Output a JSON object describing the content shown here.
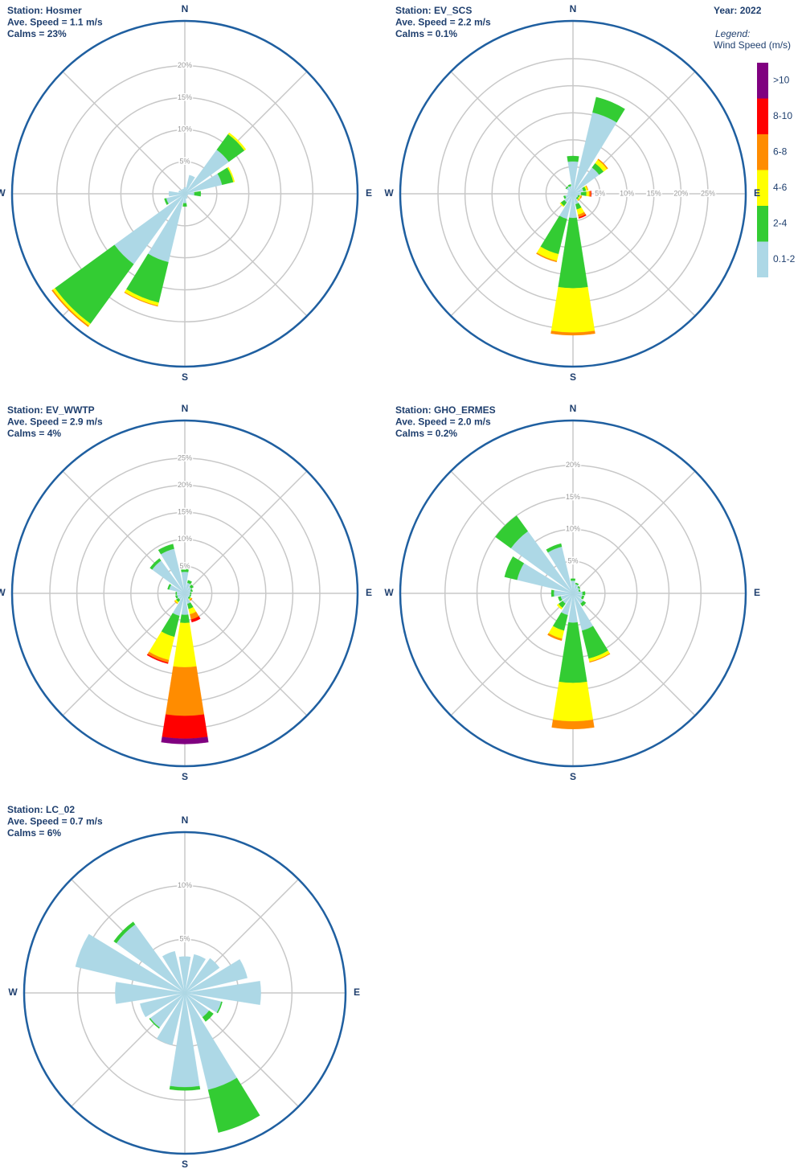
{
  "year": "Year: 2022",
  "legend": {
    "title": "Legend:",
    "subtitle": "Wind Speed (m/s)",
    "items": [
      {
        "name": "0.1-2",
        "color": "#add8e6"
      },
      {
        "name": "2-4",
        "color": "#33cc33"
      },
      {
        "name": "4-6",
        "color": "#ffff00"
      },
      {
        "name": "6-8",
        "color": "#ff8c00"
      },
      {
        "name": "8-10",
        "color": "#ff0000"
      },
      {
        "name": ">10",
        "color": "#800080"
      }
    ]
  },
  "chart_data": [
    {
      "type": "windrose",
      "station": "Station: Hosmer",
      "speed": "Ave. Speed =  1.1 m/s",
      "calms": "Calms = 23%",
      "categories": [
        "N",
        null,
        null,
        null,
        "E",
        null,
        null,
        null,
        "S",
        null,
        null,
        null,
        "W",
        null,
        null,
        null
      ],
      "ylim": [
        0,
        27
      ],
      "tick_position": "N",
      "yticks": [
        {
          "value": 5,
          "label": "5%"
        },
        {
          "value": 10,
          "label": "10%"
        },
        {
          "value": 15,
          "label": "15%"
        },
        {
          "value": 20,
          "label": "20%"
        }
      ],
      "series": [
        {
          "values": [
            1,
            3,
            8.5,
            6,
            1.5,
            0.5,
            0.5,
            0.8,
            1.5,
            11,
            13.6,
            3,
            2.5,
            1,
            0.8,
            0.8
          ]
        },
        {
          "values": [
            0,
            0,
            3,
            1.8,
            1,
            0,
            0,
            0,
            0.5,
            6.5,
            11.5,
            0.3,
            0,
            0,
            0,
            0
          ]
        },
        {
          "values": [
            0,
            0,
            0.3,
            0.2,
            0,
            0,
            0,
            0,
            0,
            0.5,
            0.4,
            0,
            0,
            0,
            0,
            0
          ]
        },
        {
          "values": [
            0,
            0,
            0,
            0,
            0,
            0,
            0,
            0,
            0,
            0.1,
            0.2,
            0,
            0,
            0,
            0,
            0
          ]
        },
        {
          "values": [
            0,
            0,
            0,
            0,
            0,
            0,
            0,
            0,
            0,
            0,
            0,
            0,
            0,
            0,
            0,
            0
          ]
        },
        {
          "values": [
            0,
            0,
            0,
            0,
            0,
            0,
            0,
            0,
            0,
            0,
            0,
            0,
            0,
            0,
            0,
            0
          ]
        }
      ]
    },
    {
      "type": "windrose",
      "station": "Station: EV_SCS",
      "speed": "Ave. Speed =  2.2 m/s",
      "calms": "Calms = 0.1%",
      "categories": [
        "N",
        null,
        null,
        null,
        "E",
        null,
        null,
        null,
        "S",
        null,
        null,
        null,
        "W",
        null,
        null,
        null
      ],
      "ylim": [
        0,
        32
      ],
      "tick_position": "E",
      "yticks": [
        {
          "value": 5,
          "label": "5%"
        },
        {
          "value": 10,
          "label": "10%"
        },
        {
          "value": 15,
          "label": "15%"
        },
        {
          "value": 20,
          "label": "20%"
        },
        {
          "value": 25,
          "label": "25%"
        }
      ],
      "series": [
        {
          "values": [
            6,
            15.5,
            6,
            2,
            1.5,
            1,
            1,
            2,
            4.5,
            4.8,
            2,
            1.5,
            1,
            1,
            1.5,
            1.5
          ]
        },
        {
          "values": [
            1,
            2.9,
            1,
            0.5,
            1,
            0.3,
            0.3,
            1,
            13,
            6.7,
            0.8,
            0.3,
            0,
            0,
            0.2,
            0.3
          ]
        },
        {
          "values": [
            0,
            0,
            0.8,
            0.3,
            0.5,
            0.2,
            0.2,
            1,
            8.2,
            1.3,
            0.2,
            0,
            0,
            0,
            0,
            0
          ]
        },
        {
          "values": [
            0,
            0,
            0.2,
            0.1,
            0.3,
            0.2,
            0.1,
            0.5,
            0.5,
            0.2,
            0,
            0,
            0,
            0,
            0,
            0
          ]
        },
        {
          "values": [
            0,
            0,
            0,
            0,
            0.1,
            0,
            0,
            0.2,
            0,
            0,
            0,
            0,
            0,
            0,
            0,
            0
          ]
        },
        {
          "values": [
            0,
            0,
            0,
            0,
            0,
            0,
            0,
            0,
            0,
            0,
            0,
            0,
            0,
            0,
            0,
            0
          ]
        }
      ]
    },
    {
      "type": "windrose",
      "station": "Station: EV_WWTP",
      "speed": "Ave. Speed =  2.9 m/s",
      "calms": "Calms = 4%",
      "categories": [
        "N",
        null,
        null,
        null,
        "E",
        null,
        null,
        null,
        "S",
        null,
        null,
        null,
        "W",
        null,
        null,
        null
      ],
      "ylim": [
        0,
        32
      ],
      "tick_position": "N",
      "yticks": [
        {
          "value": 5,
          "label": "5%"
        },
        {
          "value": 10,
          "label": "10%"
        },
        {
          "value": 15,
          "label": "15%"
        },
        {
          "value": 20,
          "label": "20%"
        },
        {
          "value": 25,
          "label": "25%"
        }
      ],
      "series": [
        {
          "values": [
            4,
            2,
            1.5,
            1.2,
            1,
            1,
            1,
            2,
            4,
            4.3,
            1.5,
            1.5,
            1.5,
            3,
            7.5,
            8.5
          ]
        },
        {
          "values": [
            1,
            0.5,
            0.5,
            0.3,
            0.2,
            0.2,
            0.3,
            1,
            1.5,
            4,
            0.5,
            0.3,
            0.2,
            0.3,
            0.5,
            0.9
          ]
        },
        {
          "values": [
            0,
            0,
            0,
            0,
            0,
            0,
            0.2,
            1,
            8.2,
            4.4,
            0.3,
            0,
            0,
            0,
            0,
            0
          ]
        },
        {
          "values": [
            0,
            0,
            0,
            0,
            0,
            0,
            0.2,
            1,
            9,
            0.5,
            0.1,
            0,
            0,
            0,
            0,
            0
          ]
        },
        {
          "values": [
            0,
            0,
            0,
            0,
            0,
            0,
            0,
            0.5,
            4.2,
            0.2,
            0,
            0,
            0,
            0,
            0,
            0
          ]
        },
        {
          "values": [
            0,
            0,
            0,
            0,
            0,
            0,
            0,
            0,
            1,
            0,
            0,
            0,
            0,
            0,
            0,
            0
          ]
        }
      ]
    },
    {
      "type": "windrose",
      "station": "Station: GHO_ERMES",
      "speed": "Ave. Speed =  2.0 m/s",
      "calms": "Calms = 0.2%",
      "categories": [
        "N",
        null,
        null,
        null,
        "E",
        null,
        null,
        null,
        "S",
        null,
        null,
        null,
        "W",
        null,
        null,
        null
      ],
      "ylim": [
        0,
        27
      ],
      "tick_position": "N",
      "yticks": [
        {
          "value": 5,
          "label": "5%"
        },
        {
          "value": 10,
          "label": "10%"
        },
        {
          "value": 15,
          "label": "15%"
        },
        {
          "value": 20,
          "label": "20%"
        }
      ],
      "series": [
        {
          "values": [
            2,
            1.5,
            1.2,
            1,
            1.5,
            1.5,
            2,
            6,
            4.6,
            3.5,
            2,
            2,
            3,
            9,
            12,
            7.5
          ]
        },
        {
          "values": [
            0.3,
            0.2,
            0.2,
            0.2,
            0.4,
            0.3,
            0.5,
            4.5,
            9.4,
            2.5,
            0.8,
            0.4,
            0.4,
            2,
            3,
            0.5
          ]
        },
        {
          "values": [
            0,
            0,
            0,
            0,
            0,
            0,
            0,
            0.5,
            6,
            1.3,
            0.3,
            0,
            0,
            0,
            0,
            0
          ]
        },
        {
          "values": [
            0,
            0,
            0,
            0,
            0,
            0,
            0,
            0.1,
            1.2,
            0.3,
            0,
            0,
            0,
            0,
            0,
            0
          ]
        },
        {
          "values": [
            0,
            0,
            0,
            0,
            0,
            0,
            0,
            0,
            0,
            0,
            0,
            0,
            0,
            0,
            0,
            0
          ]
        },
        {
          "values": [
            0,
            0,
            0,
            0,
            0,
            0,
            0,
            0,
            0,
            0,
            0,
            0,
            0,
            0,
            0,
            0
          ]
        }
      ]
    },
    {
      "type": "windrose",
      "station": "Station: LC_02",
      "speed": "Ave. Speed =  0.7 m/s",
      "calms": "Calms = 6%",
      "categories": [
        "N",
        null,
        null,
        null,
        "E",
        null,
        null,
        null,
        "S",
        null,
        null,
        null,
        "W",
        null,
        null,
        null
      ],
      "ylim": [
        0,
        15
      ],
      "tick_position": "N",
      "yticks": [
        {
          "value": 5,
          "label": "5%"
        },
        {
          "value": 10,
          "label": "10%"
        }
      ],
      "series": [
        {
          "values": [
            3.4,
            3.7,
            4,
            6,
            7.1,
            3.5,
            2.8,
            9.3,
            8.8,
            5,
            4,
            4.3,
            6.5,
            10.5,
            7.9,
            4
          ]
        },
        {
          "values": [
            0,
            0,
            0,
            0,
            0,
            0.1,
            0.5,
            4.1,
            0.3,
            0,
            0.1,
            0,
            0,
            0,
            0.3,
            0
          ]
        },
        {
          "values": [
            0,
            0,
            0,
            0,
            0,
            0,
            0,
            0,
            0,
            0,
            0,
            0,
            0,
            0,
            0,
            0
          ]
        },
        {
          "values": [
            0,
            0,
            0,
            0,
            0,
            0,
            0,
            0,
            0,
            0,
            0,
            0,
            0,
            0,
            0,
            0
          ]
        },
        {
          "values": [
            0,
            0,
            0,
            0,
            0,
            0,
            0,
            0,
            0,
            0,
            0,
            0,
            0,
            0,
            0,
            0
          ]
        },
        {
          "values": [
            0,
            0,
            0,
            0,
            0,
            0,
            0,
            0,
            0,
            0,
            0,
            0,
            0,
            0,
            0,
            0
          ]
        }
      ]
    }
  ]
}
